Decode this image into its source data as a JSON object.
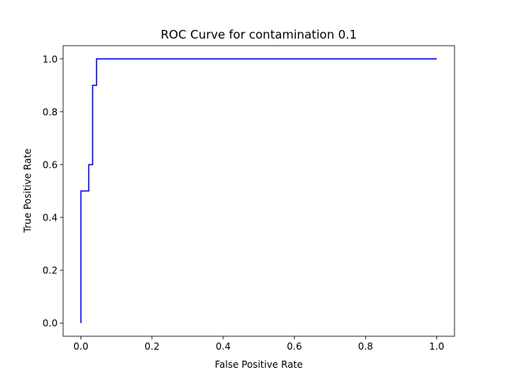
{
  "chart_data": {
    "type": "line",
    "title": "ROC Curve for contamination 0.1",
    "xlabel": "False Positive Rate",
    "ylabel": "True Positive Rate",
    "xlim": [
      -0.05,
      1.05
    ],
    "ylim": [
      -0.05,
      1.05
    ],
    "grid": false,
    "x_ticks": [
      "0.0",
      "0.2",
      "0.4",
      "0.6",
      "0.8",
      "1.0"
    ],
    "y_ticks": [
      "0.0",
      "0.2",
      "0.4",
      "0.6",
      "0.8",
      "1.0"
    ],
    "series": [
      {
        "color": "#0000ff",
        "x": [
          0.0,
          0.0,
          0.0,
          0.022,
          0.022,
          0.033,
          0.033,
          0.044,
          0.044,
          1.0
        ],
        "y": [
          0.0,
          0.5,
          0.5,
          0.5,
          0.6,
          0.6,
          0.9,
          0.9,
          1.0,
          1.0
        ]
      }
    ]
  }
}
